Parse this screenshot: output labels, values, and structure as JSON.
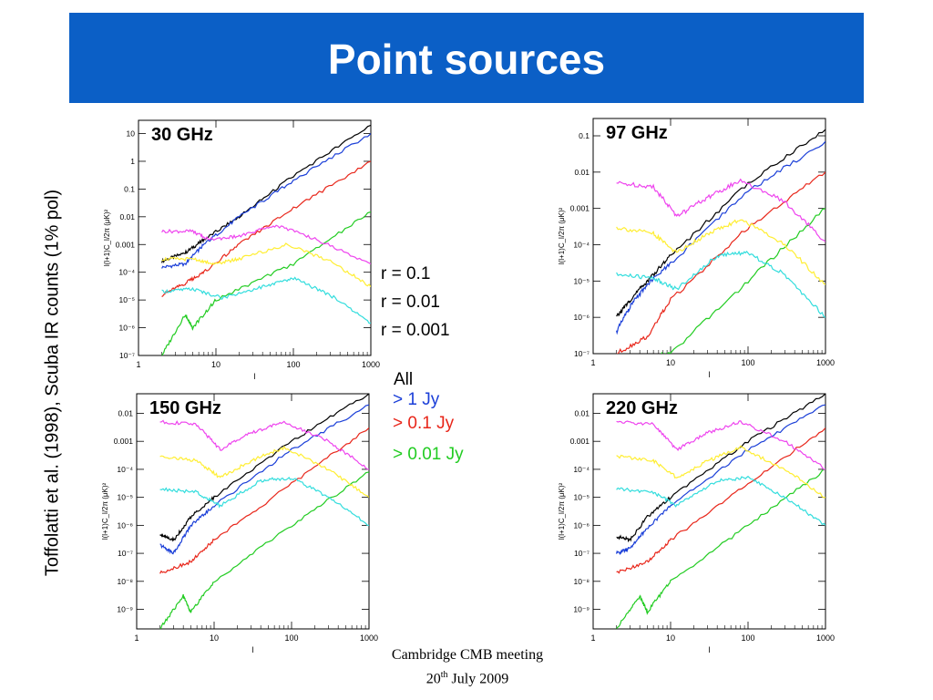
{
  "title": "Point sources",
  "side_note": "Toffolatti et al. (1998), Scuba IR counts (1% pol)",
  "legend_r": [
    "r = 0.1",
    "r = 0.01",
    "r = 0.001"
  ],
  "legend_flux": [
    {
      "label": "All",
      "color": "#000000"
    },
    {
      "label": "> 1 Jy",
      "color": "#1b3fd8"
    },
    {
      "label": "> 0.1 Jy",
      "color": "#e8261a"
    },
    {
      "label": "> 0.01 Jy",
      "color": "#22cc22"
    }
  ],
  "footer": {
    "line1": "Cambridge CMB meeting",
    "line2_pre": "20",
    "line2_sup": "th",
    "line2_post": " July 2009"
  },
  "chart_data": [
    {
      "type": "line",
      "title": "30 GHz",
      "xscale": "log",
      "yscale": "log",
      "xlim": [
        1,
        1000
      ],
      "ylim": [
        1e-07,
        30
      ],
      "xlabel": "l",
      "ylabel": "l(l+1)C_l/2π (μK)²",
      "xticks": [
        1,
        10,
        100,
        1000
      ],
      "xtick_labels": [
        "1",
        "10",
        "100",
        "1000"
      ],
      "yticks": [
        1e-07,
        1e-06,
        1e-05,
        0.0001,
        0.001,
        0.01,
        0.1,
        1,
        10
      ],
      "ytick_labels": [
        "10⁻⁷",
        "10⁻⁶",
        "10⁻⁵",
        "10⁻⁴",
        "0.001",
        "0.01",
        "0.1",
        "1",
        "10"
      ],
      "series": [
        {
          "color": "#000000",
          "x": [
            2,
            4,
            7,
            20,
            100,
            1000
          ],
          "y": [
            0.00025,
            0.0005,
            0.0015,
            0.01,
            0.3,
            20
          ]
        },
        {
          "color": "#1b3fd8",
          "x": [
            2,
            4,
            7,
            20,
            100,
            1000
          ],
          "y": [
            0.00015,
            0.0002,
            0.001,
            0.01,
            0.2,
            10
          ]
        },
        {
          "color": "#e8261a",
          "x": [
            2,
            4,
            7,
            20,
            100,
            1000
          ],
          "y": [
            1.5e-05,
            4e-05,
            0.0001,
            0.001,
            0.02,
            1
          ]
        },
        {
          "color": "#22cc22",
          "x": [
            2,
            4,
            5,
            10,
            100,
            1000
          ],
          "y": [
            1e-07,
            3e-06,
            1e-06,
            1e-05,
            0.0002,
            0.015
          ]
        },
        {
          "color": "#ee44ee",
          "x": [
            2,
            5,
            8,
            20,
            60,
            200,
            1000
          ],
          "y": [
            0.003,
            0.003,
            0.0015,
            0.002,
            0.005,
            0.0015,
            0.0002
          ]
        },
        {
          "color": "#ffee33",
          "x": [
            2,
            5,
            10,
            20,
            80,
            300,
            1000
          ],
          "y": [
            0.0003,
            0.0003,
            0.0002,
            0.0003,
            0.001,
            0.00025,
            3e-05
          ]
        },
        {
          "color": "#33dddd",
          "x": [
            2,
            5,
            12,
            40,
            100,
            300,
            1000
          ],
          "y": [
            2e-05,
            2.5e-05,
            1.2e-05,
            3e-05,
            6e-05,
            1.5e-05,
            1.5e-06
          ]
        }
      ]
    },
    {
      "type": "line",
      "title": "97 GHz",
      "xscale": "log",
      "yscale": "log",
      "xlim": [
        1,
        1000
      ],
      "ylim": [
        1e-07,
        0.3
      ],
      "xlabel": "l",
      "ylabel": "l(l+1)C_l/2π (μK)²",
      "xticks": [
        1,
        10,
        100,
        1000
      ],
      "xtick_labels": [
        "1",
        "10",
        "100",
        "1000"
      ],
      "yticks": [
        1e-07,
        1e-06,
        1e-05,
        0.0001,
        0.001,
        0.01,
        0.1
      ],
      "ytick_labels": [
        "10⁻⁷",
        "10⁻⁶",
        "10⁻⁵",
        "10⁻⁴",
        "0.001",
        "0.01",
        "0.1"
      ],
      "series": [
        {
          "color": "#000000",
          "x": [
            2,
            3,
            5,
            10,
            100,
            1000
          ],
          "y": [
            1e-06,
            3e-06,
            1e-05,
            5e-05,
            0.005,
            0.15
          ]
        },
        {
          "color": "#1b3fd8",
          "x": [
            2,
            3,
            5,
            10,
            100,
            1000
          ],
          "y": [
            4e-07,
            2e-06,
            8e-06,
            3e-05,
            0.003,
            0.07
          ]
        },
        {
          "color": "#e8261a",
          "x": [
            2,
            5,
            10,
            100,
            1000
          ],
          "y": [
            1e-07,
            3e-07,
            3e-06,
            0.0003,
            0.01
          ]
        },
        {
          "color": "#22cc22",
          "x": [
            5,
            10,
            100,
            1000
          ],
          "y": [
            8e-08,
            1e-07,
            1e-05,
            0.001
          ]
        },
        {
          "color": "#ee44ee",
          "x": [
            2,
            6,
            12,
            30,
            80,
            300,
            1000
          ],
          "y": [
            0.005,
            0.004,
            0.0006,
            0.002,
            0.006,
            0.0015,
            0.00012
          ]
        },
        {
          "color": "#ffee33",
          "x": [
            2,
            6,
            12,
            30,
            80,
            300,
            1000
          ],
          "y": [
            0.0003,
            0.0002,
            6e-05,
            0.0002,
            0.0005,
            0.0001,
            8e-06
          ]
        },
        {
          "color": "#33dddd",
          "x": [
            2,
            6,
            12,
            40,
            100,
            300,
            1000
          ],
          "y": [
            1.5e-05,
            1.2e-05,
            6e-06,
            5e-05,
            6e-05,
            1.5e-05,
            1e-06
          ]
        }
      ]
    },
    {
      "type": "line",
      "title": "150 GHz",
      "xscale": "log",
      "yscale": "log",
      "xlim": [
        1,
        1000
      ],
      "ylim": [
        2e-10,
        0.05
      ],
      "xlabel": "l",
      "ylabel": "l(l+1)C_l/2π (μK)²",
      "xticks": [
        1,
        10,
        100,
        1000
      ],
      "xtick_labels": [
        "1",
        "10",
        "100",
        "1000"
      ],
      "yticks": [
        1e-09,
        1e-08,
        1e-07,
        1e-06,
        1e-05,
        0.0001,
        0.001,
        0.01
      ],
      "ytick_labels": [
        "10⁻⁹",
        "10⁻⁸",
        "10⁻⁷",
        "10⁻⁶",
        "10⁻⁵",
        "10⁻⁴",
        "0.001",
        "0.01"
      ],
      "series": [
        {
          "color": "#000000",
          "x": [
            2,
            3,
            5,
            10,
            100,
            1000
          ],
          "y": [
            5e-07,
            3e-07,
            2e-06,
            1e-05,
            0.001,
            0.05
          ]
        },
        {
          "color": "#1b3fd8",
          "x": [
            2,
            3,
            5,
            10,
            100,
            1000
          ],
          "y": [
            2e-07,
            1e-07,
            1e-06,
            5e-06,
            0.0005,
            0.02
          ]
        },
        {
          "color": "#e8261a",
          "x": [
            2,
            5,
            10,
            100,
            1000
          ],
          "y": [
            2e-08,
            5e-08,
            3e-07,
            3e-05,
            0.003
          ]
        },
        {
          "color": "#22cc22",
          "x": [
            2,
            4,
            5,
            10,
            100,
            1000
          ],
          "y": [
            2e-10,
            3e-09,
            8e-10,
            1e-08,
            1e-06,
            8e-05
          ]
        },
        {
          "color": "#ee44ee",
          "x": [
            2,
            6,
            12,
            30,
            80,
            300,
            1000
          ],
          "y": [
            0.005,
            0.004,
            0.0005,
            0.002,
            0.005,
            0.001,
            0.0001
          ]
        },
        {
          "color": "#ffee33",
          "x": [
            2,
            6,
            12,
            30,
            80,
            300,
            1000
          ],
          "y": [
            0.0003,
            0.0002,
            5e-05,
            0.0002,
            0.0006,
            0.0001,
            1e-05
          ]
        },
        {
          "color": "#33dddd",
          "x": [
            2,
            6,
            12,
            40,
            100,
            300,
            1000
          ],
          "y": [
            2e-05,
            1.5e-05,
            5e-06,
            4e-05,
            5e-05,
            1e-05,
            1e-06
          ]
        }
      ]
    },
    {
      "type": "line",
      "title": "220 GHz",
      "xscale": "log",
      "yscale": "log",
      "xlim": [
        1,
        1000
      ],
      "ylim": [
        2e-10,
        0.05
      ],
      "xlabel": "l",
      "ylabel": "l(l+1)C_l/2π (μK)²",
      "xticks": [
        1,
        10,
        100,
        1000
      ],
      "xtick_labels": [
        "1",
        "10",
        "100",
        "1000"
      ],
      "yticks": [
        1e-09,
        1e-08,
        1e-07,
        1e-06,
        1e-05,
        0.0001,
        0.001,
        0.01
      ],
      "ytick_labels": [
        "10⁻⁹",
        "10⁻⁸",
        "10⁻⁷",
        "10⁻⁶",
        "10⁻⁵",
        "10⁻⁴",
        "0.001",
        "0.01"
      ],
      "series": [
        {
          "color": "#000000",
          "x": [
            2,
            3,
            5,
            10,
            100,
            1000
          ],
          "y": [
            4e-07,
            3e-07,
            2e-06,
            1e-05,
            0.001,
            0.05
          ]
        },
        {
          "color": "#1b3fd8",
          "x": [
            2,
            3,
            5,
            10,
            100,
            1000
          ],
          "y": [
            1e-07,
            1.5e-07,
            8e-07,
            5e-06,
            0.0005,
            0.02
          ]
        },
        {
          "color": "#e8261a",
          "x": [
            2,
            5,
            10,
            100,
            1000
          ],
          "y": [
            2e-08,
            5e-08,
            3e-07,
            3e-05,
            0.003
          ]
        },
        {
          "color": "#22cc22",
          "x": [
            2,
            4,
            5,
            10,
            100,
            1000
          ],
          "y": [
            2e-10,
            3e-09,
            8e-10,
            1e-08,
            1e-06,
            0.0001
          ]
        },
        {
          "color": "#ee44ee",
          "x": [
            2,
            6,
            12,
            30,
            80,
            300,
            1000
          ],
          "y": [
            0.005,
            0.004,
            0.0005,
            0.002,
            0.005,
            0.001,
            0.0001
          ]
        },
        {
          "color": "#ffee33",
          "x": [
            2,
            6,
            12,
            30,
            80,
            300,
            1000
          ],
          "y": [
            0.0003,
            0.0002,
            5e-05,
            0.0002,
            0.0006,
            0.0001,
            1e-05
          ]
        },
        {
          "color": "#33dddd",
          "x": [
            2,
            6,
            12,
            40,
            100,
            300,
            1000
          ],
          "y": [
            2e-05,
            1.5e-05,
            5e-06,
            4e-05,
            5e-05,
            1e-05,
            1e-06
          ]
        }
      ]
    }
  ]
}
